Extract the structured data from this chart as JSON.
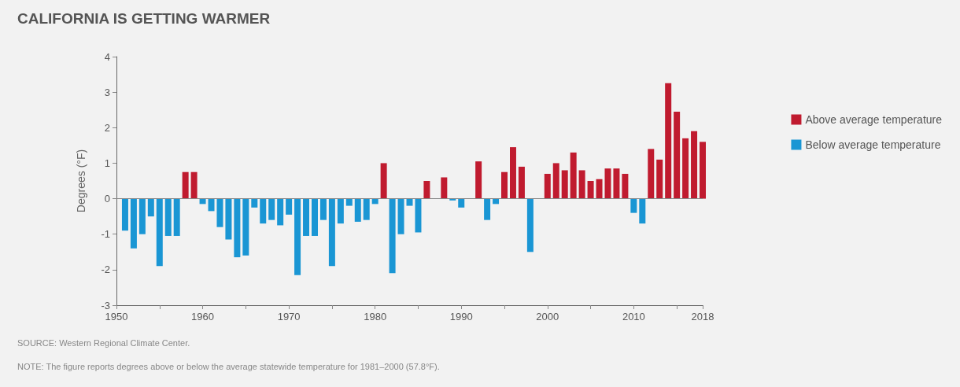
{
  "chart_data": {
    "type": "bar",
    "title": "CALIFORNIA IS GETTING WARMER",
    "ylabel": "Degrees (°F)",
    "x": [
      1951,
      1952,
      1953,
      1954,
      1955,
      1956,
      1957,
      1958,
      1959,
      1960,
      1961,
      1962,
      1963,
      1964,
      1965,
      1966,
      1967,
      1968,
      1969,
      1970,
      1971,
      1972,
      1973,
      1974,
      1975,
      1976,
      1977,
      1978,
      1979,
      1980,
      1981,
      1982,
      1983,
      1984,
      1985,
      1986,
      1987,
      1988,
      1989,
      1990,
      1991,
      1992,
      1993,
      1994,
      1995,
      1996,
      1997,
      1998,
      1999,
      2000,
      2001,
      2002,
      2003,
      2004,
      2005,
      2006,
      2007,
      2008,
      2009,
      2010,
      2011,
      2012,
      2013,
      2014,
      2015,
      2016,
      2017,
      2018
    ],
    "series": [
      {
        "name": "Above average temperature",
        "color": "#c01b2f",
        "values": [
          null,
          null,
          null,
          null,
          null,
          null,
          null,
          0.75,
          0.75,
          null,
          null,
          null,
          null,
          null,
          null,
          null,
          null,
          null,
          null,
          null,
          null,
          null,
          null,
          null,
          null,
          null,
          null,
          null,
          null,
          null,
          1.0,
          null,
          null,
          null,
          null,
          0.5,
          0,
          0.6,
          null,
          null,
          0,
          1.05,
          null,
          null,
          0.75,
          1.45,
          0.9,
          null,
          0,
          0.7,
          1.0,
          0.8,
          1.3,
          0.8,
          0.5,
          0.55,
          0.85,
          0.85,
          0.7,
          null,
          null,
          1.4,
          1.1,
          3.25,
          2.45,
          1.7,
          1.9,
          1.6
        ]
      },
      {
        "name": "Below average temperature",
        "color": "#1a96d4",
        "values": [
          -0.9,
          -1.4,
          -1.0,
          -0.5,
          -1.9,
          -1.05,
          -1.05,
          null,
          null,
          -0.15,
          -0.35,
          -0.8,
          -1.15,
          -1.65,
          -1.6,
          -0.25,
          -0.7,
          -0.6,
          -0.75,
          -0.45,
          -2.15,
          -1.05,
          -1.05,
          -0.6,
          -1.9,
          -0.7,
          -0.2,
          -0.65,
          -0.6,
          -0.15,
          null,
          -2.1,
          -1.0,
          -0.2,
          -0.95,
          null,
          null,
          null,
          -0.05,
          -0.25,
          null,
          null,
          -0.6,
          -0.15,
          null,
          null,
          null,
          -1.5,
          null,
          null,
          null,
          null,
          null,
          null,
          null,
          null,
          null,
          null,
          null,
          -0.4,
          -0.7,
          null,
          null,
          null,
          null,
          null,
          null,
          null
        ]
      }
    ],
    "xlim": [
      1950,
      2018
    ],
    "xticks": [
      1950,
      {
        "value": 1955,
        "label": null
      },
      1960,
      {
        "value": 1965,
        "label": null
      },
      1970,
      {
        "value": 1975,
        "label": null
      },
      1980,
      {
        "value": 1985,
        "label": null
      },
      1990,
      {
        "value": 1995,
        "label": null
      },
      2000,
      {
        "value": 2005,
        "label": null
      },
      2010,
      {
        "value": 2015,
        "label": null
      },
      2018
    ],
    "ylim": [
      -3,
      4
    ],
    "yticks": [
      -3,
      -2,
      -1,
      0,
      1,
      2,
      3,
      4
    ],
    "grid": false,
    "legend": "right",
    "ref_lines": [
      {
        "axis": "y",
        "value": 0,
        "color": "#888888"
      }
    ],
    "annotations": [
      "SOURCE: Western Regional Climate Center.",
      "NOTE: The figure reports degrees above or below the average statewide temperature for 1981–2000 (57.8°F)."
    ]
  }
}
